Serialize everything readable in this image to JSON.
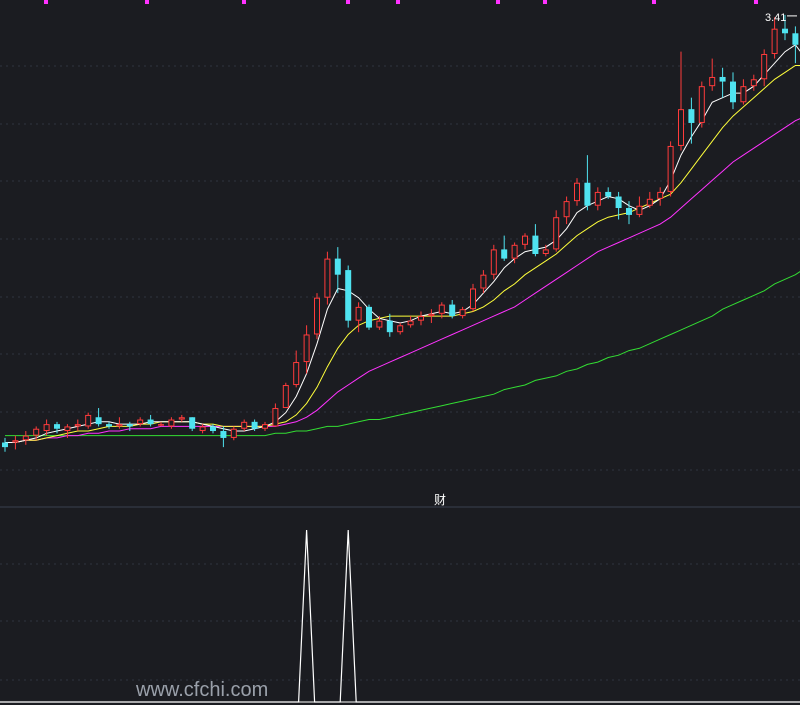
{
  "chart_data": {
    "type": "candlestick",
    "colors": {
      "background": "#1b1c21",
      "up": "#ff3b3b",
      "down": "#4fe3f0",
      "ma5": "#ffffff",
      "ma10": "#ffff3b",
      "ma20": "#ff33ff",
      "ma60": "#33dd33",
      "grid": "#2f3340",
      "divider": "#3a3f4e",
      "indicator": "#ffffff",
      "watermark": "#9aa0aa"
    },
    "price_range": [
      1.3,
      3.44
    ],
    "candles": [
      [
        1.55,
        1.53,
        1.57,
        1.51
      ],
      [
        1.55,
        1.56,
        1.58,
        1.52
      ],
      [
        1.56,
        1.58,
        1.6,
        1.54
      ],
      [
        1.58,
        1.61,
        1.62,
        1.56
      ],
      [
        1.6,
        1.63,
        1.65,
        1.58
      ],
      [
        1.63,
        1.61,
        1.64,
        1.59
      ],
      [
        1.6,
        1.62,
        1.63,
        1.57
      ],
      [
        1.62,
        1.63,
        1.65,
        1.6
      ],
      [
        1.62,
        1.67,
        1.68,
        1.61
      ],
      [
        1.66,
        1.63,
        1.7,
        1.62
      ],
      [
        1.63,
        1.62,
        1.64,
        1.61
      ],
      [
        1.62,
        1.63,
        1.66,
        1.61
      ],
      [
        1.63,
        1.62,
        1.64,
        1.6
      ],
      [
        1.63,
        1.65,
        1.66,
        1.62
      ],
      [
        1.65,
        1.63,
        1.67,
        1.62
      ],
      [
        1.63,
        1.63,
        1.64,
        1.62
      ],
      [
        1.62,
        1.65,
        1.66,
        1.61
      ],
      [
        1.65,
        1.66,
        1.67,
        1.64
      ],
      [
        1.66,
        1.61,
        1.66,
        1.6
      ],
      [
        1.6,
        1.62,
        1.63,
        1.59
      ],
      [
        1.62,
        1.6,
        1.63,
        1.59
      ],
      [
        1.6,
        1.57,
        1.62,
        1.53
      ],
      [
        1.57,
        1.61,
        1.62,
        1.56
      ],
      [
        1.61,
        1.64,
        1.65,
        1.6
      ],
      [
        1.64,
        1.61,
        1.65,
        1.6
      ],
      [
        1.61,
        1.63,
        1.64,
        1.6
      ],
      [
        1.62,
        1.7,
        1.72,
        1.62
      ],
      [
        1.7,
        1.8,
        1.81,
        1.7
      ],
      [
        1.8,
        1.9,
        1.95,
        1.79
      ],
      [
        1.9,
        2.02,
        2.06,
        1.85
      ],
      [
        2.02,
        2.18,
        2.2,
        2.0
      ],
      [
        2.18,
        2.35,
        2.38,
        2.15
      ],
      [
        2.35,
        2.28,
        2.4,
        2.2
      ],
      [
        2.3,
        2.08,
        2.32,
        2.05
      ],
      [
        2.08,
        2.14,
        2.16,
        2.03
      ],
      [
        2.14,
        2.05,
        2.15,
        2.04
      ],
      [
        2.05,
        2.08,
        2.1,
        2.04
      ],
      [
        2.08,
        2.03,
        2.11,
        2.01
      ],
      [
        2.03,
        2.06,
        2.07,
        2.02
      ],
      [
        2.06,
        2.08,
        2.1,
        2.05
      ],
      [
        2.08,
        2.1,
        2.12,
        2.06
      ],
      [
        2.1,
        2.11,
        2.13,
        2.07
      ],
      [
        2.11,
        2.15,
        2.16,
        2.09
      ],
      [
        2.15,
        2.1,
        2.17,
        2.09
      ],
      [
        2.1,
        2.13,
        2.14,
        2.09
      ],
      [
        2.13,
        2.22,
        2.24,
        2.12
      ],
      [
        2.22,
        2.28,
        2.3,
        2.2
      ],
      [
        2.28,
        2.39,
        2.41,
        2.26
      ],
      [
        2.39,
        2.35,
        2.45,
        2.34
      ],
      [
        2.35,
        2.41,
        2.42,
        2.33
      ],
      [
        2.41,
        2.45,
        2.46,
        2.39
      ],
      [
        2.45,
        2.37,
        2.5,
        2.36
      ],
      [
        2.37,
        2.39,
        2.41,
        2.36
      ],
      [
        2.39,
        2.53,
        2.56,
        2.38
      ],
      [
        2.53,
        2.6,
        2.62,
        2.5
      ],
      [
        2.6,
        2.68,
        2.7,
        2.58
      ],
      [
        2.68,
        2.58,
        2.8,
        2.56
      ],
      [
        2.58,
        2.64,
        2.66,
        2.56
      ],
      [
        2.64,
        2.62,
        2.66,
        2.61
      ],
      [
        2.62,
        2.57,
        2.64,
        2.52
      ],
      [
        2.57,
        2.54,
        2.6,
        2.5
      ],
      [
        2.54,
        2.58,
        2.62,
        2.53
      ],
      [
        2.58,
        2.61,
        2.64,
        2.57
      ],
      [
        2.61,
        2.64,
        2.66,
        2.58
      ],
      [
        2.64,
        2.84,
        2.86,
        2.62
      ],
      [
        2.84,
        3.0,
        3.25,
        2.82
      ],
      [
        3.0,
        2.94,
        3.05,
        2.85
      ],
      [
        2.94,
        3.1,
        3.12,
        2.92
      ],
      [
        3.1,
        3.14,
        3.22,
        3.08
      ],
      [
        3.14,
        3.12,
        3.18,
        3.05
      ],
      [
        3.12,
        3.03,
        3.16,
        3.0
      ],
      [
        3.03,
        3.1,
        3.13,
        3.02
      ],
      [
        3.1,
        3.13,
        3.15,
        3.08
      ],
      [
        3.13,
        3.24,
        3.26,
        3.1
      ],
      [
        3.24,
        3.35,
        3.4,
        3.22
      ],
      [
        3.35,
        3.33,
        3.41,
        3.3
      ],
      [
        3.33,
        3.28,
        3.36,
        3.2
      ],
      [
        3.28,
        3.04,
        3.3,
        3.0
      ],
      [
        3.04,
        2.98,
        3.06,
        2.89
      ]
    ],
    "ma5": [
      1.55,
      1.55,
      1.56,
      1.57,
      1.59,
      1.6,
      1.61,
      1.62,
      1.63,
      1.64,
      1.64,
      1.63,
      1.63,
      1.63,
      1.64,
      1.64,
      1.64,
      1.64,
      1.64,
      1.63,
      1.62,
      1.61,
      1.6,
      1.6,
      1.61,
      1.62,
      1.64,
      1.68,
      1.75,
      1.85,
      1.98,
      2.13,
      2.22,
      2.21,
      2.18,
      2.13,
      2.09,
      2.08,
      2.07,
      2.08,
      2.1,
      2.11,
      2.12,
      2.11,
      2.12,
      2.15,
      2.2,
      2.25,
      2.31,
      2.35,
      2.38,
      2.39,
      2.4,
      2.43,
      2.48,
      2.55,
      2.58,
      2.6,
      2.62,
      2.61,
      2.58,
      2.56,
      2.58,
      2.61,
      2.69,
      2.8,
      2.88,
      2.95,
      3.03,
      3.05,
      3.07,
      3.07,
      3.1,
      3.15,
      3.2,
      3.25,
      3.28,
      3.22,
      3.15
    ],
    "ma10": [
      1.55,
      1.55,
      1.56,
      1.56,
      1.57,
      1.58,
      1.59,
      1.6,
      1.6,
      1.61,
      1.62,
      1.62,
      1.62,
      1.63,
      1.63,
      1.64,
      1.64,
      1.64,
      1.64,
      1.63,
      1.63,
      1.62,
      1.62,
      1.62,
      1.62,
      1.62,
      1.63,
      1.64,
      1.67,
      1.72,
      1.79,
      1.88,
      1.96,
      2.02,
      2.06,
      2.08,
      2.09,
      2.1,
      2.1,
      2.1,
      2.1,
      2.1,
      2.1,
      2.1,
      2.11,
      2.12,
      2.14,
      2.17,
      2.21,
      2.24,
      2.28,
      2.31,
      2.34,
      2.37,
      2.41,
      2.45,
      2.48,
      2.51,
      2.53,
      2.54,
      2.55,
      2.57,
      2.59,
      2.61,
      2.63,
      2.68,
      2.74,
      2.8,
      2.86,
      2.92,
      2.97,
      3.01,
      3.05,
      3.09,
      3.13,
      3.16,
      3.19,
      3.19,
      3.17
    ],
    "ma20": [
      1.55,
      1.55,
      1.56,
      1.56,
      1.57,
      1.57,
      1.58,
      1.58,
      1.59,
      1.59,
      1.6,
      1.6,
      1.61,
      1.61,
      1.61,
      1.62,
      1.62,
      1.62,
      1.62,
      1.62,
      1.62,
      1.62,
      1.62,
      1.62,
      1.62,
      1.62,
      1.62,
      1.63,
      1.64,
      1.66,
      1.69,
      1.73,
      1.77,
      1.8,
      1.83,
      1.86,
      1.88,
      1.9,
      1.92,
      1.94,
      1.96,
      1.98,
      2.0,
      2.02,
      2.04,
      2.06,
      2.08,
      2.1,
      2.12,
      2.14,
      2.17,
      2.2,
      2.23,
      2.26,
      2.29,
      2.32,
      2.35,
      2.38,
      2.4,
      2.42,
      2.44,
      2.46,
      2.48,
      2.5,
      2.53,
      2.57,
      2.61,
      2.65,
      2.69,
      2.73,
      2.77,
      2.8,
      2.83,
      2.86,
      2.89,
      2.92,
      2.95,
      2.97,
      2.98
    ],
    "ma60": [
      1.58,
      1.58,
      1.58,
      1.58,
      1.58,
      1.58,
      1.58,
      1.58,
      1.58,
      1.58,
      1.58,
      1.58,
      1.58,
      1.58,
      1.58,
      1.58,
      1.58,
      1.58,
      1.58,
      1.58,
      1.58,
      1.58,
      1.58,
      1.58,
      1.58,
      1.58,
      1.59,
      1.59,
      1.6,
      1.6,
      1.61,
      1.62,
      1.62,
      1.63,
      1.64,
      1.65,
      1.65,
      1.66,
      1.67,
      1.68,
      1.69,
      1.7,
      1.71,
      1.72,
      1.73,
      1.74,
      1.75,
      1.76,
      1.78,
      1.79,
      1.8,
      1.82,
      1.83,
      1.84,
      1.86,
      1.87,
      1.89,
      1.9,
      1.92,
      1.93,
      1.95,
      1.96,
      1.98,
      2.0,
      2.02,
      2.04,
      2.06,
      2.08,
      2.1,
      2.13,
      2.15,
      2.17,
      2.19,
      2.21,
      2.24,
      2.26,
      2.28,
      2.31,
      2.33
    ],
    "high_label": "3.41",
    "high_index": 75,
    "center_label": "财",
    "indicator_spikes": [
      29,
      33
    ],
    "watermark": "www.cfchi.com"
  }
}
